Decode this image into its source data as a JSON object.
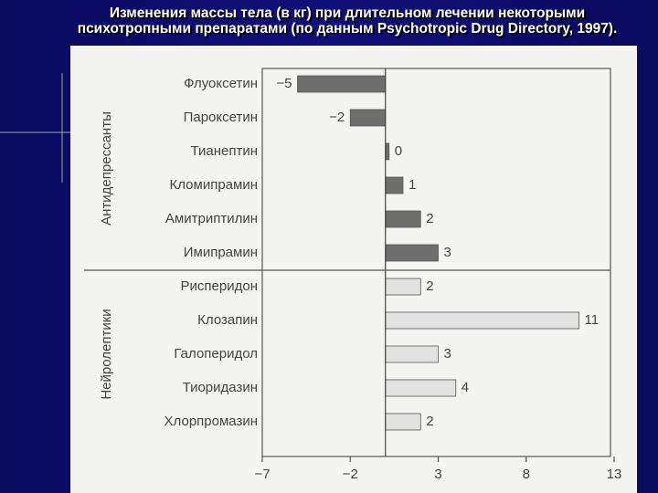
{
  "chart_data": {
    "type": "bar",
    "orientation": "horizontal",
    "title": "Изменения массы тела (в кг) при длительном лечении некоторыми психотропными препаратами (по данным Psychotropic Drug Directory, 1997).",
    "groups": [
      {
        "name": "Антидепрессанты",
        "color": "#6e6e6e",
        "categories": [
          "Флуоксетин",
          "Пароксетин",
          "Тианептин",
          "Кломипрамин",
          "Амитриптилин",
          "Имипрамин"
        ],
        "values": [
          -5,
          -2,
          0,
          1,
          2,
          3
        ],
        "value_labels": [
          "−5",
          "−2",
          "0",
          "1",
          "2",
          "3"
        ]
      },
      {
        "name": "Нейролептики",
        "color": "#e2e2e2",
        "categories": [
          "Рисперидон",
          "Клозапин",
          "Галоперидол",
          "Тиоридазин",
          "Хлорпромазин"
        ],
        "values": [
          2,
          11,
          3,
          4,
          2
        ],
        "value_labels": [
          "2",
          "11",
          "3",
          "4",
          "2"
        ]
      }
    ],
    "xlim": [
      -7,
      13
    ],
    "xticks": [
      {
        "value": -7,
        "label": "−7"
      },
      {
        "value": -2,
        "label": "−2"
      },
      3,
      8,
      13
    ]
  }
}
